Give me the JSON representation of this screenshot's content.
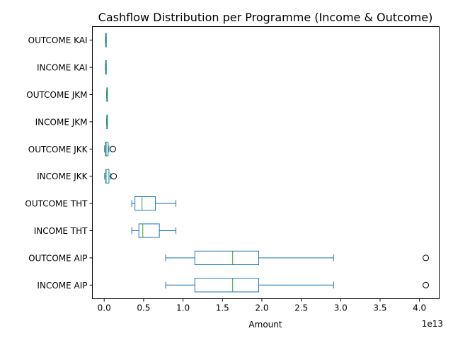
{
  "chart_data": {
    "type": "boxplot",
    "orientation": "horizontal",
    "title": "Cashflow Distribution per Programme (Income & Outcome)",
    "xlabel": "Amount",
    "x_offset_label": "1e13",
    "xlim": [
      -0.15,
      4.25
    ],
    "x_ticks": [
      0.0,
      0.5,
      1.0,
      1.5,
      2.0,
      2.5,
      3.0,
      3.5,
      4.0
    ],
    "x_tick_labels": [
      "0.0",
      "0.5",
      "1.0",
      "1.5",
      "2.0",
      "2.5",
      "3.0",
      "3.5",
      "4.0"
    ],
    "categories": [
      "INCOME AIP",
      "OUTCOME AIP",
      "INCOME THT",
      "OUTCOME THT",
      "INCOME JKK",
      "OUTCOME JKK",
      "INCOME JKM",
      "OUTCOME JKM",
      "INCOME KAI",
      "OUTCOME KAI"
    ],
    "boxes": [
      {
        "label": "INCOME AIP",
        "whisker_low": 0.78,
        "q1": 1.15,
        "median": 1.63,
        "q3": 1.96,
        "whisker_high": 2.91,
        "outliers": [
          4.08
        ]
      },
      {
        "label": "OUTCOME AIP",
        "whisker_low": 0.78,
        "q1": 1.15,
        "median": 1.63,
        "q3": 1.96,
        "whisker_high": 2.91,
        "outliers": [
          4.08
        ]
      },
      {
        "label": "INCOME THT",
        "whisker_low": 0.35,
        "q1": 0.44,
        "median": 0.49,
        "q3": 0.7,
        "whisker_high": 0.91,
        "outliers": []
      },
      {
        "label": "OUTCOME THT",
        "whisker_low": 0.35,
        "q1": 0.39,
        "median": 0.48,
        "q3": 0.65,
        "whisker_high": 0.91,
        "outliers": []
      },
      {
        "label": "INCOME JKK",
        "whisker_low": 0.005,
        "q1": 0.02,
        "median": 0.025,
        "q3": 0.06,
        "whisker_high": 0.08,
        "outliers": [
          0.12
        ]
      },
      {
        "label": "OUTCOME JKK",
        "whisker_low": 0.005,
        "q1": 0.015,
        "median": 0.025,
        "q3": 0.05,
        "whisker_high": 0.06,
        "outliers": [
          0.11
        ]
      },
      {
        "label": "INCOME JKM",
        "whisker_low": 0.03,
        "q1": 0.032,
        "median": 0.034,
        "q3": 0.036,
        "whisker_high": 0.038,
        "outliers": []
      },
      {
        "label": "OUTCOME JKM",
        "whisker_low": 0.03,
        "q1": 0.032,
        "median": 0.034,
        "q3": 0.036,
        "whisker_high": 0.038,
        "outliers": []
      },
      {
        "label": "INCOME KAI",
        "whisker_low": 0.015,
        "q1": 0.018,
        "median": 0.02,
        "q3": 0.023,
        "whisker_high": 0.025,
        "outliers": []
      },
      {
        "label": "OUTCOME KAI",
        "whisker_low": 0.015,
        "q1": 0.018,
        "median": 0.02,
        "q3": 0.023,
        "whisker_high": 0.025,
        "outliers": []
      }
    ],
    "box_color": "#1f77b4",
    "median_color": "#2ca02c",
    "grid": false,
    "legend": "none"
  }
}
